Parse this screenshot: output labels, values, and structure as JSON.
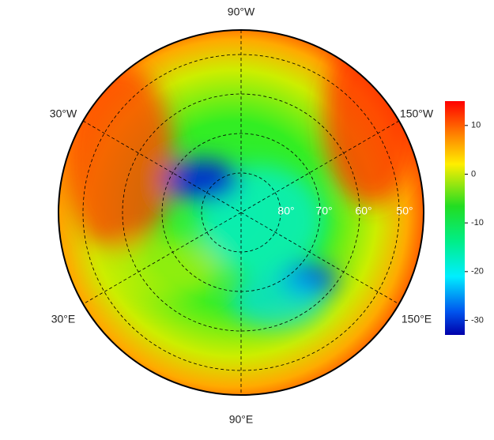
{
  "map": {
    "lon_labels": [
      "90°W",
      "30°W",
      "150°W",
      "30°E",
      "150°E",
      "90°E"
    ],
    "lat_labels": [
      "80°",
      "70°",
      "60°",
      "50°"
    ]
  },
  "colorbar": {
    "lim": [
      -33,
      15
    ],
    "ticks": [
      10,
      0,
      -10,
      -20,
      -30
    ]
  }
}
